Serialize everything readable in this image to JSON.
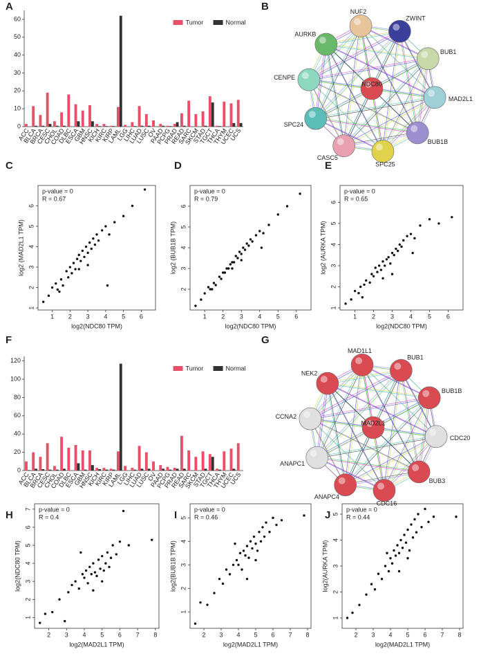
{
  "chart_data": [
    {
      "panel": "A",
      "type": "bar",
      "legend": "upper right",
      "ylim": [
        0,
        65
      ],
      "yticks": [
        0,
        10,
        20,
        30,
        40,
        50,
        60
      ],
      "categories": [
        "ACC",
        "BLCA",
        "BRCA",
        "CESC",
        "CHOL",
        "COAD",
        "DLBC",
        "ESCA",
        "GBM",
        "HNSC",
        "KICH",
        "KIRC",
        "KIRP",
        "LAML",
        "LGG",
        "LIHC",
        "LUAD",
        "LUSC",
        "OV",
        "PAAD",
        "PCPG",
        "PRAD",
        "READ",
        "SARC",
        "SKCM",
        "STAD",
        "TGCT",
        "THCA",
        "THYM",
        "UCEC",
        "UCS"
      ],
      "series": [
        {
          "name": "Tumor",
          "color": "#e8506a",
          "values": [
            1.5,
            11.5,
            6.5,
            19,
            3,
            8,
            18,
            12.5,
            9,
            12,
            1.5,
            1.5,
            0.5,
            11,
            1,
            2.5,
            11.5,
            7,
            3.5,
            1.5,
            0.5,
            1.5,
            7.5,
            14.5,
            7,
            8.5,
            17,
            0.5,
            14,
            13,
            15
          ]
        },
        {
          "name": "Normal",
          "color": "#333333",
          "values": [
            0,
            0.5,
            0.5,
            1.5,
            0.5,
            0.5,
            0,
            3,
            0,
            3,
            0.3,
            0.3,
            0.3,
            62,
            0,
            0.3,
            0.5,
            0.5,
            0,
            0.5,
            0.3,
            2.5,
            0.5,
            0,
            0,
            0.5,
            13.5,
            0.3,
            0,
            2,
            2
          ]
        }
      ]
    },
    {
      "panel": "C",
      "type": "scatter",
      "annotations": [
        "p-value = 0",
        "R = 0.67"
      ],
      "xlabel": "log2(NDC80 TPM)",
      "ylabel": "log2 (MAD2L1 TPM)",
      "xlim": [
        0.2,
        6.8
      ],
      "xticks": [
        1,
        2,
        3,
        4,
        5,
        6
      ],
      "ylim": [
        0.9,
        7
      ],
      "yticks": [
        1,
        2,
        3,
        4,
        5,
        6
      ],
      "x": [
        0.5,
        0.8,
        1.0,
        1.2,
        1.3,
        1.5,
        1.6,
        1.8,
        1.9,
        2.0,
        2.1,
        2.2,
        2.3,
        2.4,
        2.5,
        2.6,
        2.7,
        2.8,
        2.9,
        3.0,
        3.1,
        3.2,
        3.3,
        3.4,
        3.5,
        3.6,
        3.8,
        4.0,
        4.2,
        4.5,
        5.0,
        5.5,
        6.2,
        4.1,
        3.0,
        2.5,
        1.4
      ],
      "values": [
        1.3,
        1.6,
        2.0,
        2.2,
        1.9,
        2.4,
        2.1,
        2.8,
        2.5,
        3.0,
        2.7,
        3.2,
        2.9,
        3.4,
        3.6,
        3.3,
        3.8,
        3.5,
        4.0,
        3.7,
        4.2,
        3.9,
        4.4,
        4.1,
        4.6,
        4.3,
        4.8,
        5.0,
        4.6,
        5.2,
        5.5,
        6.0,
        6.8,
        2.1,
        3.1,
        2.9,
        1.8
      ]
    },
    {
      "panel": "D",
      "type": "scatter",
      "annotations": [
        "p-value = 0",
        "R = 0.79"
      ],
      "xlabel": "log2(NDC80 TPM)",
      "ylabel": "log2 (BUB1B TPM)",
      "xlim": [
        0.2,
        6.8
      ],
      "xticks": [
        1,
        2,
        3,
        4,
        5,
        6
      ],
      "ylim": [
        1,
        7
      ],
      "yticks": [
        2,
        3,
        4,
        5,
        6
      ],
      "x": [
        0.5,
        0.8,
        1.0,
        1.2,
        1.3,
        1.5,
        1.6,
        1.8,
        1.9,
        2.0,
        2.1,
        2.2,
        2.3,
        2.4,
        2.5,
        2.6,
        2.7,
        2.8,
        2.9,
        3.0,
        3.1,
        3.2,
        3.3,
        3.4,
        3.5,
        3.6,
        3.8,
        4.0,
        4.2,
        4.5,
        5.0,
        5.5,
        6.2,
        4.1,
        3.0,
        2.5,
        1.4
      ],
      "values": [
        1.2,
        1.5,
        1.8,
        2.1,
        2.0,
        2.3,
        2.2,
        2.6,
        2.5,
        2.8,
        2.8,
        3.0,
        3.0,
        3.2,
        3.3,
        3.3,
        3.6,
        3.5,
        3.8,
        3.7,
        4.0,
        3.9,
        4.2,
        4.1,
        4.4,
        4.3,
        4.6,
        4.8,
        4.7,
        5.1,
        5.6,
        6.0,
        6.6,
        4.0,
        3.4,
        3.0,
        2.0
      ]
    },
    {
      "panel": "E",
      "type": "scatter",
      "annotations": [
        "p-value = 0",
        "R = 0.65"
      ],
      "xlabel": "log2(NDC80 TPM)",
      "ylabel": "log2 (AURKA TPM)",
      "xlim": [
        0.2,
        6.8
      ],
      "xticks": [
        1,
        2,
        3,
        4,
        5,
        6
      ],
      "ylim": [
        0.9,
        6.8
      ],
      "yticks": [
        1,
        2,
        3,
        4,
        5,
        6
      ],
      "x": [
        0.5,
        0.8,
        1.0,
        1.2,
        1.3,
        1.5,
        1.6,
        1.8,
        1.9,
        2.0,
        2.1,
        2.2,
        2.3,
        2.4,
        2.5,
        2.6,
        2.7,
        2.8,
        2.9,
        3.0,
        3.1,
        3.2,
        3.3,
        3.4,
        3.5,
        3.6,
        3.8,
        4.0,
        4.2,
        4.5,
        5.0,
        5.5,
        6.2,
        4.1,
        3.0,
        2.5,
        1.4
      ],
      "values": [
        1.2,
        1.4,
        1.8,
        1.7,
        2.0,
        2.1,
        2.3,
        2.2,
        2.6,
        2.5,
        2.9,
        2.7,
        3.0,
        2.8,
        3.2,
        3.0,
        3.3,
        3.4,
        3.1,
        3.6,
        3.5,
        3.8,
        3.7,
        4.0,
        3.9,
        4.2,
        4.4,
        4.5,
        4.3,
        4.9,
        5.2,
        5.0,
        5.3,
        3.6,
        2.6,
        2.4,
        1.5
      ]
    },
    {
      "panel": "F",
      "type": "bar",
      "legend": "upper right",
      "ylim": [
        0,
        125
      ],
      "yticks": [
        0,
        20,
        40,
        60,
        80,
        100,
        120
      ],
      "categories": [
        "ACC",
        "BLCA",
        "BRCA",
        "CESC",
        "CHOL",
        "COAD",
        "DLBC",
        "ESCA",
        "GBM",
        "HNSC",
        "KICH",
        "KIRC",
        "KIRP",
        "LAML",
        "LGG",
        "LIHC",
        "LUAD",
        "LUSC",
        "OV",
        "PAAD",
        "PCPG",
        "PRAD",
        "READ",
        "SARC",
        "SKCM",
        "STAD",
        "TGCT",
        "THCA",
        "THYM",
        "UCEC",
        "UCS"
      ],
      "series": [
        {
          "name": "Tumor",
          "color": "#e8506a",
          "values": [
            10,
            20,
            15,
            30,
            5,
            37,
            25,
            28,
            22,
            22,
            3,
            3,
            2,
            21,
            5,
            3,
            27,
            20,
            10,
            6,
            4,
            3,
            38,
            22,
            15,
            21,
            18,
            2,
            21,
            24,
            30
          ]
        },
        {
          "name": "Normal",
          "color": "#333333",
          "values": [
            0.5,
            2,
            1.5,
            1,
            1,
            2,
            0,
            8,
            1,
            6,
            1.5,
            1,
            1,
            117,
            0,
            1,
            2,
            2,
            0,
            2,
            1,
            2,
            2,
            0,
            0,
            2,
            15,
            1,
            0,
            2,
            0
          ]
        }
      ]
    },
    {
      "panel": "H",
      "type": "scatter",
      "annotations": [
        "p-value = 0",
        "R = 0.4"
      ],
      "xlabel": "log2(MAD2L1 TPM)",
      "ylabel": "log2(NDC80 TPM)",
      "xlim": [
        1.2,
        8.2
      ],
      "xticks": [
        2,
        3,
        4,
        5,
        6,
        7,
        8
      ],
      "ylim": [
        0.4,
        7.3
      ],
      "yticks": [
        1,
        2,
        3,
        4,
        5,
        6,
        7
      ],
      "x": [
        1.5,
        1.8,
        2.2,
        2.6,
        2.9,
        3.1,
        3.3,
        3.5,
        3.7,
        3.9,
        4.0,
        4.1,
        4.2,
        4.3,
        4.4,
        4.5,
        4.6,
        4.7,
        4.8,
        4.9,
        5.0,
        5.1,
        5.2,
        5.3,
        5.4,
        5.5,
        5.6,
        5.8,
        6.0,
        6.2,
        6.5,
        7.8,
        4.5,
        5.0,
        3.8
      ],
      "values": [
        0.7,
        1.2,
        1.3,
        2.0,
        0.8,
        2.4,
        2.8,
        3.0,
        2.6,
        3.4,
        3.2,
        3.6,
        2.9,
        3.8,
        3.4,
        4.0,
        3.5,
        3.3,
        4.2,
        3.7,
        4.4,
        3.6,
        4.0,
        4.6,
        3.8,
        4.3,
        5.0,
        4.5,
        5.2,
        6.9,
        5.0,
        5.3,
        2.5,
        3.0,
        4.6
      ]
    },
    {
      "panel": "I",
      "type": "scatter",
      "annotations": [
        "p-value = 0",
        "R = 0.46"
      ],
      "xlabel": "log2(MAD2L1 TPM)",
      "ylabel": "log2(BUB1B TPM)",
      "xlim": [
        1.2,
        8.2
      ],
      "xticks": [
        2,
        3,
        4,
        5,
        6,
        7,
        8
      ],
      "ylim": [
        0.3,
        5.6
      ],
      "yticks": [
        1,
        2,
        3,
        4,
        5
      ],
      "x": [
        1.5,
        1.8,
        2.2,
        2.6,
        2.9,
        3.1,
        3.3,
        3.5,
        3.7,
        3.9,
        4.0,
        4.1,
        4.2,
        4.3,
        4.4,
        4.5,
        4.6,
        4.7,
        4.8,
        4.9,
        5.0,
        5.1,
        5.2,
        5.3,
        5.4,
        5.5,
        5.6,
        5.8,
        6.0,
        6.2,
        6.5,
        7.8,
        4.5,
        5.0,
        3.8
      ],
      "values": [
        0.5,
        1.4,
        1.3,
        1.8,
        2.4,
        2.2,
        2.8,
        2.6,
        3.0,
        3.2,
        3.0,
        3.5,
        2.8,
        3.6,
        3.4,
        3.8,
        3.3,
        4.0,
        3.7,
        4.2,
        3.9,
        3.6,
        4.4,
        4.0,
        4.6,
        4.2,
        4.8,
        4.4,
        5.0,
        4.7,
        4.9,
        5.1,
        2.4,
        3.2,
        3.9
      ]
    },
    {
      "panel": "J",
      "type": "scatter",
      "annotations": [
        "p-value = 0",
        "R = 0.44"
      ],
      "xlabel": "log2(MAD2L1 TPM)",
      "ylabel": "log2(AURKA TPM)",
      "xlim": [
        1.2,
        8.2
      ],
      "xticks": [
        2,
        3,
        4,
        5,
        6,
        7,
        8
      ],
      "ylim": [
        0.6,
        5.4
      ],
      "yticks": [
        1,
        2,
        3,
        4,
        5
      ],
      "x": [
        1.5,
        1.8,
        2.2,
        2.6,
        2.9,
        3.1,
        3.3,
        3.5,
        3.7,
        3.9,
        4.0,
        4.1,
        4.2,
        4.3,
        4.4,
        4.5,
        4.6,
        4.7,
        4.8,
        4.9,
        5.0,
        5.1,
        5.2,
        5.3,
        5.4,
        5.5,
        5.6,
        5.8,
        6.0,
        6.2,
        6.5,
        7.8,
        4.5,
        5.0,
        3.8
      ],
      "values": [
        1.0,
        1.2,
        1.5,
        1.9,
        2.3,
        2.1,
        2.7,
        2.5,
        3.0,
        2.8,
        3.3,
        3.1,
        3.6,
        3.4,
        3.8,
        3.5,
        4.0,
        3.7,
        4.2,
        3.9,
        4.4,
        3.6,
        4.6,
        4.1,
        4.8,
        4.3,
        5.0,
        4.5,
        5.2,
        4.7,
        4.9,
        4.9,
        2.8,
        3.3,
        3.5
      ]
    }
  ],
  "networks": [
    {
      "panel": "B",
      "nodes": [
        "NDC80",
        "NUF2",
        "ZWINT",
        "BUB1",
        "MAD2L1",
        "BUB1B",
        "SPC25",
        "CASC5",
        "SPC24",
        "CENPE",
        "AURKB"
      ]
    },
    {
      "panel": "G",
      "nodes": [
        "MAD2L1",
        "MAD1L1",
        "BUB1",
        "BUB1B",
        "CDC20",
        "BUB3",
        "CDC16",
        "ANAPC4",
        "ANAPC1",
        "CCNA2",
        "NEK2"
      ]
    }
  ]
}
